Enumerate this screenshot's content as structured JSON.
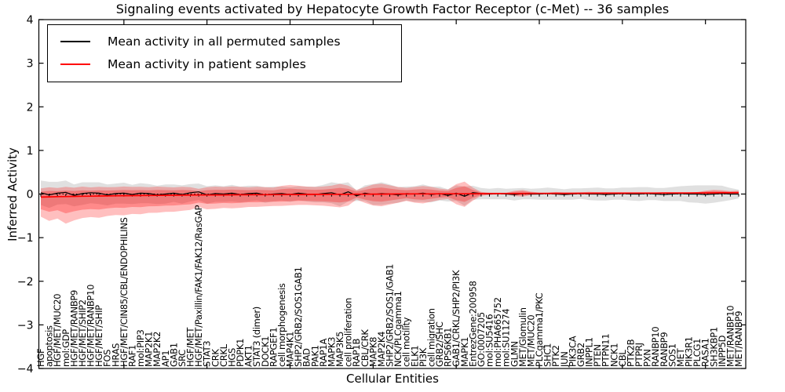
{
  "figure": {
    "title": "Signaling events activated by Hepatocyte Growth Factor Receptor (c-Met) -- 36 samples",
    "xlabel": "Cellular Entities",
    "ylabel": "Inferred Activity"
  },
  "chart_data": {
    "type": "line",
    "title": "Signaling events activated by Hepatocyte Growth Factor Receptor (c-Met) -- 36 samples",
    "xlabel": "Cellular Entities",
    "ylabel": "Inferred Activity",
    "ylim": [
      -4,
      4
    ],
    "ytick_values": [
      4,
      3,
      2,
      1,
      0,
      -1,
      -2,
      -3,
      -4
    ],
    "ytick_labels": [
      "4",
      "3",
      "2",
      "1",
      "0",
      "−1",
      "−2",
      "−3",
      "−4"
    ],
    "grid": false,
    "legend": {
      "position": "upper left",
      "entries": [
        {
          "label": "Mean activity in all permuted samples",
          "color": "#000000"
        },
        {
          "label": "Mean activity in patient samples",
          "color": "#ff0000"
        }
      ]
    },
    "colors": {
      "permuted_line": "#000000",
      "patient_line": "#ff0000",
      "permuted_band": "rgba(0,0,0,0.12)",
      "patient_band_outer": "rgba(255,0,0,0.25)",
      "patient_band_inner": "rgba(255,0,0,0.28)"
    },
    "inner_band_scale": 0.62,
    "zero_line": {
      "style": "dotted",
      "color": "#000000",
      "value": 0
    },
    "categories": [
      "HGF",
      "apoptosis",
      "HGF/MET/MUC20",
      "mol:GDP",
      "HGF/MET/RANBP9",
      "HGF/MET/SHIP2",
      "HGF/MET/RANBP10",
      "HGF/MET/SHIP",
      "FOS",
      "HRAS",
      "HGF/MET/CIN85/CBL/ENDOPHILINS",
      "RAF1",
      "mol:PIP3",
      "MAP2K1",
      "MAP2K2",
      "AP1",
      "GAB1",
      "SRC",
      "HGF/MET",
      "HGF/MET/Paxillin/FAK1/FAK12/RasGAP",
      "STAT3",
      "CRK",
      "CRKL",
      "HGS",
      "PDPK1",
      "AKT1",
      "STAT3 (dimer)",
      "DOCK1",
      "RAPGEF1",
      "cell morphogenesis",
      "MAP4K1",
      "SHP2/GRB2/SOS1GAB1",
      "BAD",
      "PAK1",
      "RAP1A",
      "MAPK3",
      "MAP3K5",
      "cell proliferation",
      "RAP1B",
      "CBL/CRK",
      "MAPK8",
      "MAP2K4",
      "SHP2/GRB2/SOS1/GAB1",
      "NCK/PLCgamma1",
      "cell motility",
      "ELK1",
      "PI3K",
      "cell migration",
      "GRB2/SHC",
      "RPS6KB1",
      "GAB1/CRKL/SHP2/PI3K",
      "MAPK1",
      "EntrezGene:200958",
      "GO:0007205",
      "mol:SU5416",
      "mol:PHA665752",
      "mol:SU11274",
      "GLMN",
      "MET/Glomulin",
      "MET/MUC20",
      "PLCgamma1/PKC",
      "SHC1",
      "PTK2",
      "JUN",
      "PIK3CA",
      "GRB2",
      "INPPL1",
      "PTEN",
      "PTPN11",
      "NCK1",
      "CBL",
      "PTK2B",
      "PTPRJ",
      "PXN",
      "RANBP10",
      "RANBP9",
      "SOS1",
      "MET",
      "PIK3R1",
      "PLCG1",
      "RASA1",
      "SH3KBP1",
      "INPP5D",
      "MET/RANBP10",
      "MET/RANBP9"
    ],
    "series": [
      {
        "name": "Mean activity in all permuted samples",
        "values": [
          0.03,
          -0.02,
          0.02,
          0.04,
          -0.03,
          0.01,
          0.03,
          0.02,
          -0.02,
          0.01,
          0.02,
          -0.01,
          0.02,
          0.01,
          -0.02,
          0.0,
          0.02,
          -0.01,
          0.03,
          0.05,
          -0.02,
          0.01,
          0.0,
          0.02,
          -0.01,
          0.01,
          0.02,
          -0.02,
          0.0,
          0.01,
          -0.01,
          0.02,
          0.0,
          -0.01,
          0.01,
          0.03,
          -0.02,
          0.05,
          -0.04,
          0.02,
          -0.01,
          0.01,
          0.0,
          -0.02,
          0.01,
          0.0,
          0.02,
          -0.01,
          0.01,
          -0.03,
          0.02,
          -0.05,
          0.03,
          0.01,
          0.0,
          0.01,
          0.0,
          -0.01,
          0.01,
          0.0,
          0.0,
          0.01,
          0.0,
          -0.01,
          0.0,
          0.01,
          0.0,
          0.0,
          -0.01,
          0.0,
          0.01,
          0.0,
          0.0,
          0.01,
          0.0,
          -0.01,
          0.0,
          0.01,
          0.0,
          0.0,
          -0.01,
          0.0,
          0.01,
          0.0,
          0.0
        ]
      },
      {
        "name": "Mean activity in patient samples",
        "values": [
          -0.07,
          -0.065,
          -0.06,
          -0.057,
          -0.054,
          -0.05,
          -0.048,
          -0.045,
          -0.043,
          -0.04,
          -0.038,
          -0.036,
          -0.034,
          -0.032,
          -0.03,
          -0.028,
          -0.027,
          -0.025,
          -0.024,
          -0.022,
          -0.021,
          -0.02,
          -0.019,
          -0.018,
          -0.017,
          -0.016,
          -0.015,
          -0.014,
          -0.013,
          -0.012,
          -0.011,
          -0.01,
          -0.009,
          -0.008,
          -0.007,
          -0.006,
          -0.006,
          -0.005,
          -0.004,
          -0.003,
          -0.002,
          -0.001,
          0.0,
          0.001,
          0.002,
          0.003,
          0.004,
          0.004,
          0.005,
          0.005,
          0.006,
          0.006,
          0.008,
          0.009,
          0.01,
          0.011,
          0.012,
          0.013,
          0.013,
          0.014,
          0.015,
          0.015,
          0.016,
          0.016,
          0.017,
          0.018,
          0.018,
          0.019,
          0.019,
          0.02,
          0.02,
          0.021,
          0.021,
          0.022,
          0.022,
          0.023,
          0.023,
          0.024,
          0.024,
          0.025,
          0.026,
          0.027,
          0.028,
          0.029,
          0.03
        ]
      }
    ],
    "permuted_band_halfwidth": [
      0.28,
      0.3,
      0.26,
      0.27,
      0.25,
      0.26,
      0.24,
      0.25,
      0.24,
      0.23,
      0.24,
      0.22,
      0.23,
      0.22,
      0.21,
      0.22,
      0.2,
      0.21,
      0.2,
      0.19,
      0.2,
      0.19,
      0.18,
      0.19,
      0.18,
      0.18,
      0.17,
      0.18,
      0.17,
      0.16,
      0.17,
      0.16,
      0.17,
      0.18,
      0.2,
      0.24,
      0.26,
      0.22,
      0.12,
      0.18,
      0.24,
      0.26,
      0.22,
      0.18,
      0.16,
      0.18,
      0.2,
      0.18,
      0.16,
      0.14,
      0.18,
      0.22,
      0.16,
      0.13,
      0.12,
      0.13,
      0.12,
      0.14,
      0.13,
      0.12,
      0.13,
      0.14,
      0.13,
      0.12,
      0.13,
      0.12,
      0.14,
      0.15,
      0.14,
      0.13,
      0.14,
      0.15,
      0.16,
      0.15,
      0.14,
      0.15,
      0.16,
      0.17,
      0.19,
      0.2,
      0.21,
      0.2,
      0.18,
      0.14,
      0.1
    ],
    "patient_band_upper": [
      0.2,
      0.22,
      0.2,
      0.22,
      0.2,
      0.22,
      0.2,
      0.21,
      0.2,
      0.2,
      0.21,
      0.2,
      0.2,
      0.19,
      0.2,
      0.19,
      0.18,
      0.19,
      0.18,
      0.14,
      0.18,
      0.19,
      0.18,
      0.19,
      0.18,
      0.17,
      0.18,
      0.17,
      0.16,
      0.2,
      0.22,
      0.2,
      0.18,
      0.17,
      0.18,
      0.2,
      0.24,
      0.2,
      0.1,
      0.16,
      0.22,
      0.24,
      0.2,
      0.16,
      0.14,
      0.16,
      0.18,
      0.16,
      0.12,
      0.1,
      0.22,
      0.28,
      0.14,
      0.04,
      0.02,
      0.02,
      0.02,
      0.06,
      0.08,
      0.04,
      0.02,
      0.02,
      0.03,
      0.02,
      0.02,
      0.02,
      0.03,
      0.02,
      0.02,
      0.02,
      0.02,
      0.02,
      0.02,
      0.02,
      0.02,
      0.02,
      0.02,
      0.02,
      0.02,
      0.02,
      0.05,
      0.07,
      0.06,
      0.04,
      0.05
    ],
    "patient_band_lower": [
      0.45,
      0.55,
      0.5,
      0.62,
      0.55,
      0.5,
      0.48,
      0.5,
      0.46,
      0.44,
      0.45,
      0.42,
      0.43,
      0.4,
      0.4,
      0.38,
      0.38,
      0.36,
      0.34,
      0.28,
      0.33,
      0.32,
      0.3,
      0.31,
      0.3,
      0.28,
      0.28,
      0.27,
      0.26,
      0.26,
      0.25,
      0.24,
      0.24,
      0.25,
      0.26,
      0.28,
      0.3,
      0.26,
      0.12,
      0.2,
      0.26,
      0.28,
      0.24,
      0.2,
      0.16,
      0.2,
      0.22,
      0.18,
      0.14,
      0.12,
      0.24,
      0.3,
      0.16,
      0.05,
      0.03,
      0.02,
      0.02,
      0.06,
      0.07,
      0.04,
      0.02,
      0.02,
      0.03,
      0.02,
      0.02,
      0.02,
      0.02,
      0.02,
      0.02,
      0.02,
      0.02,
      0.02,
      0.02,
      0.02,
      0.02,
      0.02,
      0.02,
      0.02,
      0.02,
      0.02,
      0.03,
      0.03,
      0.03,
      0.02,
      0.02
    ]
  }
}
